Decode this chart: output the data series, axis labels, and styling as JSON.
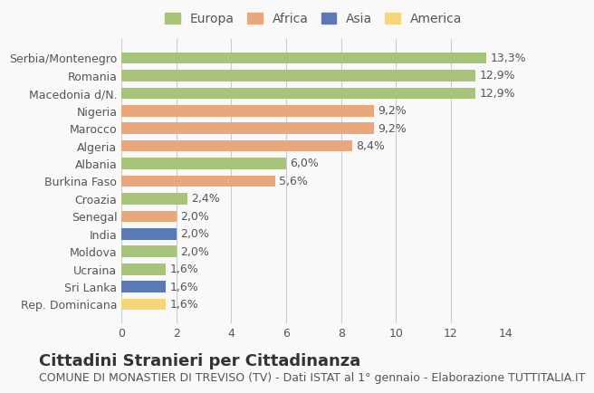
{
  "categories": [
    "Rep. Dominicana",
    "Sri Lanka",
    "Ucraina",
    "Moldova",
    "India",
    "Senegal",
    "Croazia",
    "Burkina Faso",
    "Albania",
    "Algeria",
    "Marocco",
    "Nigeria",
    "Macedonia d/N.",
    "Romania",
    "Serbia/Montenegro"
  ],
  "values": [
    1.6,
    1.6,
    1.6,
    2.0,
    2.0,
    2.0,
    2.4,
    5.6,
    6.0,
    8.4,
    9.2,
    9.2,
    12.9,
    12.9,
    13.3
  ],
  "labels": [
    "1,6%",
    "1,6%",
    "1,6%",
    "2,0%",
    "2,0%",
    "2,0%",
    "2,4%",
    "5,6%",
    "6,0%",
    "8,4%",
    "9,2%",
    "9,2%",
    "12,9%",
    "12,9%",
    "13,3%"
  ],
  "continents": [
    "America",
    "Asia",
    "Europa",
    "Europa",
    "Asia",
    "Africa",
    "Europa",
    "Africa",
    "Europa",
    "Africa",
    "Africa",
    "Africa",
    "Europa",
    "Europa",
    "Europa"
  ],
  "colors": {
    "Europa": "#a8c47a",
    "Africa": "#e8a87c",
    "Asia": "#5b7ab5",
    "America": "#f5d67a"
  },
  "legend_order": [
    "Europa",
    "Africa",
    "Asia",
    "America"
  ],
  "title": "Cittadini Stranieri per Cittadinanza",
  "subtitle": "COMUNE DI MONASTIER DI TREVISO (TV) - Dati ISTAT al 1° gennaio - Elaborazione TUTTITALIA.IT",
  "xlim": [
    0,
    14
  ],
  "xticks": [
    0,
    2,
    4,
    6,
    8,
    10,
    12,
    14
  ],
  "background_color": "#f9f9f9",
  "bar_height": 0.65,
  "title_fontsize": 13,
  "subtitle_fontsize": 9,
  "label_fontsize": 9,
  "tick_fontsize": 9,
  "legend_fontsize": 10
}
